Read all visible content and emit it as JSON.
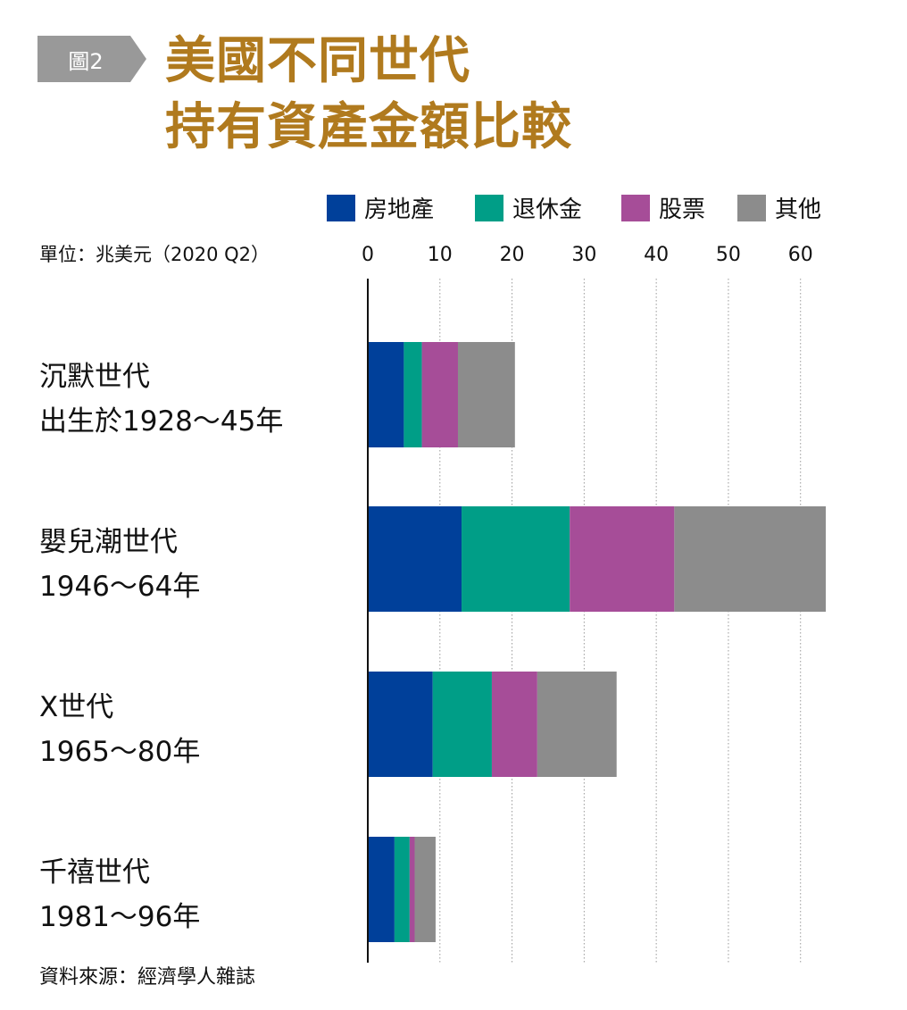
{
  "header": {
    "badge": "圖2",
    "title_line1": "美國不同世代",
    "title_line2": "持有資產金額比較"
  },
  "colors": {
    "badge": "#999999",
    "title": "#b07a1e",
    "房地產": "#00409a",
    "退休金": "#009e87",
    "股票": "#a64d98",
    "其他": "#8c8c8c"
  },
  "unit_label": "單位：兆美元（2020 Q2）",
  "source": "資料來源：經濟學人雜誌",
  "chart_data": {
    "type": "bar",
    "orientation": "horizontal",
    "stacked": true,
    "title": "美國不同世代持有資產金額比較",
    "categories": [
      [
        "沉默世代",
        "出生於1928～45年"
      ],
      [
        "嬰兒潮世代",
        "1946～64年"
      ],
      [
        "X世代",
        "1965～80年"
      ],
      [
        "千禧世代",
        "1981～96年"
      ]
    ],
    "series": [
      {
        "name": "房地產",
        "color": "#00409a",
        "values": [
          5.0,
          13.0,
          9.0,
          3.7
        ]
      },
      {
        "name": "退休金",
        "color": "#009e87",
        "values": [
          2.5,
          15.0,
          8.2,
          2.1
        ]
      },
      {
        "name": "股票",
        "color": "#a64d98",
        "values": [
          5.0,
          14.5,
          6.3,
          0.7
        ]
      },
      {
        "name": "其他",
        "color": "#8c8c8c",
        "values": [
          7.9,
          21.0,
          11.0,
          2.9
        ]
      }
    ],
    "xlim": [
      0,
      63.5
    ],
    "xticks": [
      0,
      10,
      20,
      30,
      40,
      50,
      60
    ],
    "grid": true,
    "legend_position": "top"
  }
}
